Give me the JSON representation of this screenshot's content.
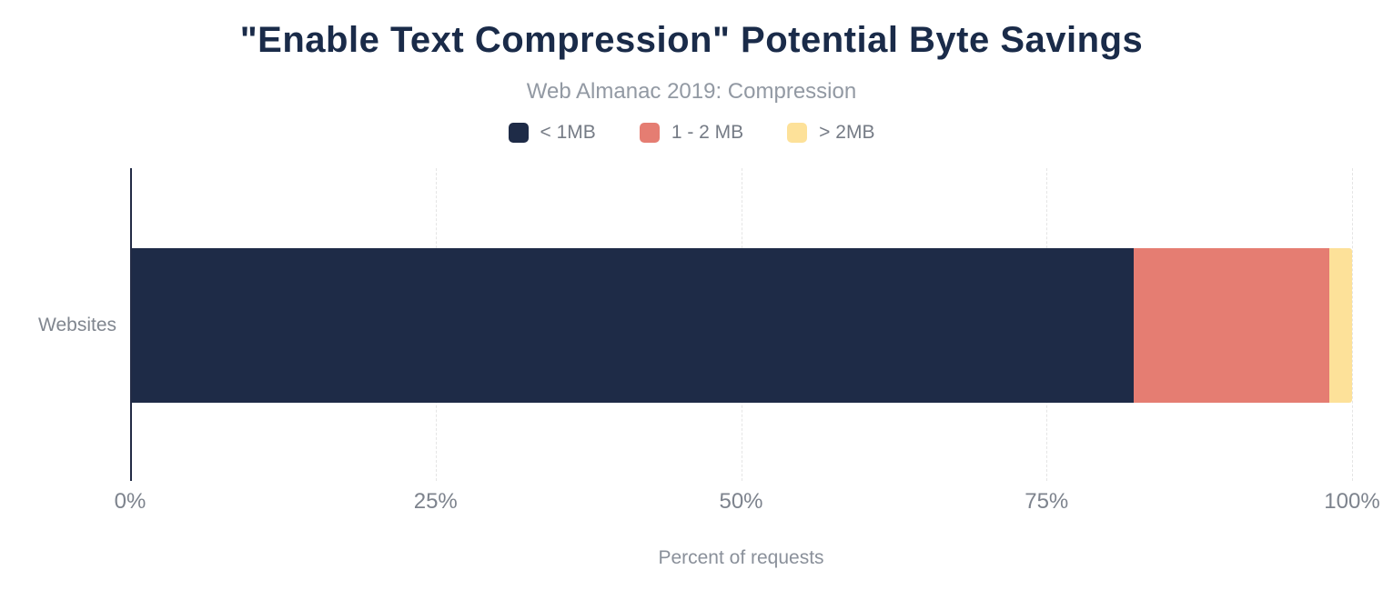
{
  "chart_data": {
    "type": "bar",
    "orientation": "horizontal",
    "stacked": true,
    "title": "\"Enable Text Compression\" Potential Byte Savings",
    "subtitle": "Web Almanac 2019: Compression",
    "categories": [
      "Websites"
    ],
    "series": [
      {
        "name": "< 1MB",
        "color": "#1e2b47",
        "values": [
          82.1
        ]
      },
      {
        "name": "1 - 2 MB",
        "color": "#e57d72",
        "values": [
          16.0
        ]
      },
      {
        "name": "> 2MB",
        "color": "#fde199",
        "values": [
          1.9
        ]
      }
    ],
    "xlabel": "Percent of requests",
    "xlim": [
      0,
      100
    ],
    "x_ticks": [
      {
        "value": 0,
        "label": "0%"
      },
      {
        "value": 25,
        "label": "25%"
      },
      {
        "value": 50,
        "label": "50%"
      },
      {
        "value": 75,
        "label": "75%"
      },
      {
        "value": 100,
        "label": "100%"
      }
    ],
    "legend_position": "top",
    "grid": "vertical-dashed"
  },
  "colors": {
    "title": "#1a2b49",
    "subtitle": "#9299a3",
    "axis_text": "#7d838d",
    "axis_line": "#222b45",
    "gridline": "#e5e5e5",
    "background": "#ffffff"
  }
}
